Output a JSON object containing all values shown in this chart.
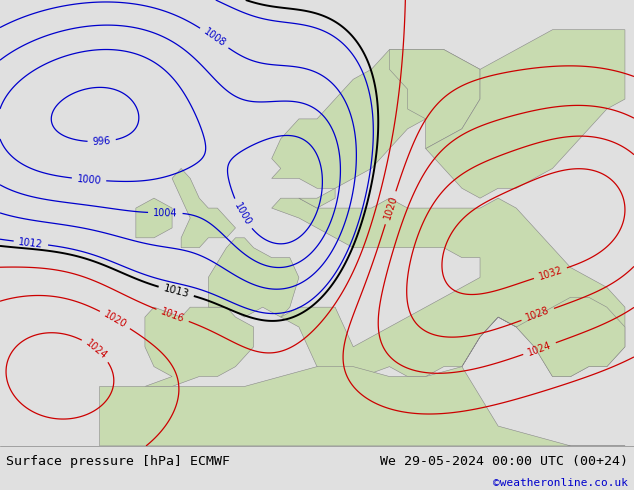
{
  "title_left": "Surface pressure [hPa] ECMWF",
  "title_right": "We 29-05-2024 00:00 UTC (00+24)",
  "watermark": "©weatheronline.co.uk",
  "bg_color": "#c8d8e8",
  "land_color_land": "#c8dbb0",
  "bottom_bar_color": "#e0e0e0",
  "font_size_title": 9.5,
  "font_size_watermark": 8,
  "blue_color": "#0000cc",
  "red_color": "#cc0000",
  "black_color": "#000000"
}
